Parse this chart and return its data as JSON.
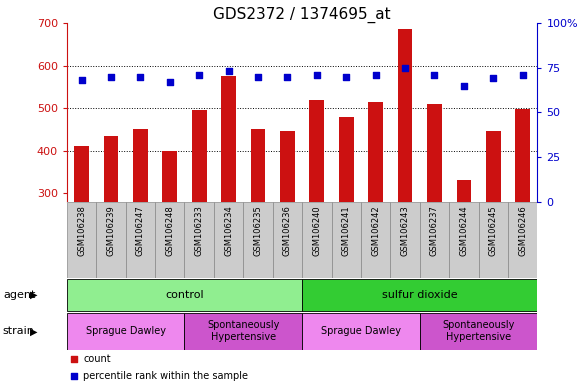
{
  "title": "GDS2372 / 1374695_at",
  "samples": [
    "GSM106238",
    "GSM106239",
    "GSM106247",
    "GSM106248",
    "GSM106233",
    "GSM106234",
    "GSM106235",
    "GSM106236",
    "GSM106240",
    "GSM106241",
    "GSM106242",
    "GSM106243",
    "GSM106237",
    "GSM106244",
    "GSM106245",
    "GSM106246"
  ],
  "counts": [
    410,
    435,
    450,
    400,
    495,
    575,
    450,
    445,
    520,
    478,
    515,
    685,
    510,
    330,
    445,
    498
  ],
  "percentiles": [
    68,
    70,
    70,
    67,
    71,
    73,
    70,
    70,
    71,
    70,
    71,
    75,
    71,
    65,
    69,
    71
  ],
  "ylim_left": [
    280,
    700
  ],
  "ylim_right": [
    0,
    100
  ],
  "yticks_left": [
    300,
    400,
    500,
    600,
    700
  ],
  "yticks_right": [
    0,
    25,
    50,
    75,
    100
  ],
  "bar_color": "#cc1111",
  "dot_color": "#0000cc",
  "bg_color": "#ffffff",
  "plot_bg": "#ffffff",
  "agent_groups": [
    {
      "label": "control",
      "start": 0,
      "end": 8,
      "color": "#90ee90"
    },
    {
      "label": "sulfur dioxide",
      "start": 8,
      "end": 16,
      "color": "#33cc33"
    }
  ],
  "strain_groups": [
    {
      "label": "Sprague Dawley",
      "start": 0,
      "end": 4,
      "color": "#ee88ee"
    },
    {
      "label": "Spontaneously\nHypertensive",
      "start": 4,
      "end": 8,
      "color": "#cc55cc"
    },
    {
      "label": "Sprague Dawley",
      "start": 8,
      "end": 12,
      "color": "#ee88ee"
    },
    {
      "label": "Spontaneously\nHypertensive",
      "start": 12,
      "end": 16,
      "color": "#cc55cc"
    }
  ],
  "gridline_color": "#000000",
  "tick_label_color_left": "#cc1111",
  "tick_label_color_right": "#0000cc",
  "sample_box_color": "#cccccc",
  "sample_box_edge": "#888888",
  "title_fontsize": 11,
  "axis_fontsize": 8,
  "sample_fontsize": 6,
  "annot_fontsize": 8
}
